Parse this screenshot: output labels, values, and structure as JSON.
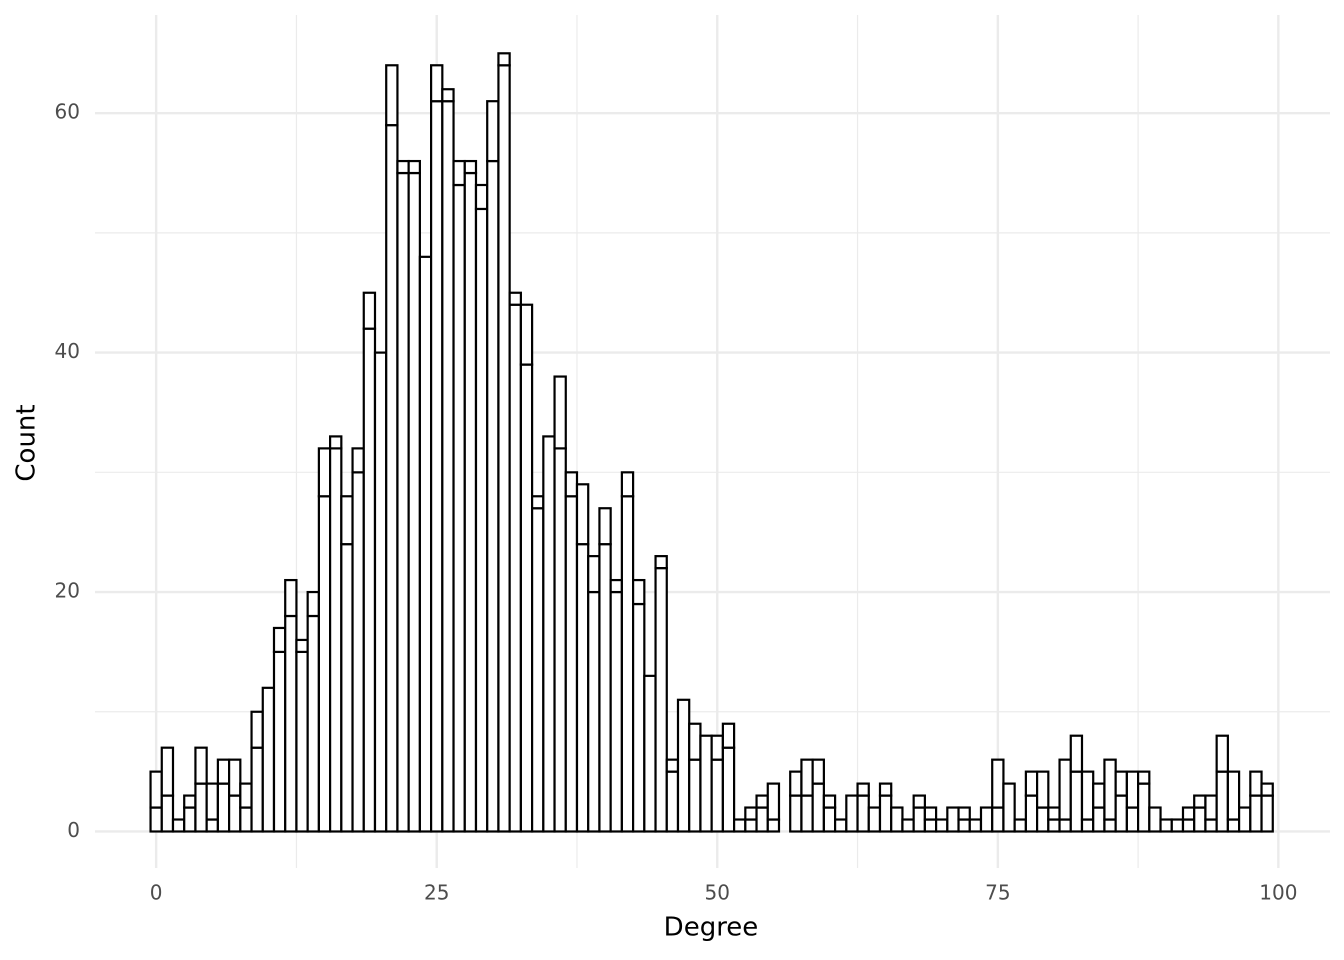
{
  "chart_data": {
    "type": "histogram",
    "x_label": "Degree",
    "y_label": "Count",
    "bins": [
      -0.5,
      0.5,
      1.5,
      2.5,
      3.5,
      4.5,
      5.5,
      6.5,
      7.5,
      8.5,
      9.5,
      10.5,
      11.5,
      12.5,
      13.5,
      14.5,
      15.5,
      16.5,
      17.5,
      18.5,
      19.5,
      20.5,
      21.5,
      22.5,
      23.5,
      24.5,
      25.5,
      26.5,
      27.5,
      28.5,
      29.5,
      30.5,
      31.5,
      32.5,
      33.5,
      34.5,
      35.5,
      36.5,
      37.5,
      38.5,
      39.5,
      40.5,
      41.5,
      42.5,
      43.5,
      44.5,
      45.5,
      46.5,
      47.5,
      48.5,
      49.5,
      50.5,
      51.5,
      52.5,
      53.5,
      54.5,
      55.5,
      56.5,
      57.5,
      58.5,
      59.5,
      60.5,
      61.5,
      62.5,
      63.5,
      64.5,
      65.5,
      66.5,
      67.5,
      68.5,
      69.5,
      70.5,
      71.5,
      72.5,
      73.5,
      74.5,
      75.5,
      76.5,
      77.5,
      78.5,
      79.5,
      80.5,
      81.5,
      82.5,
      83.5,
      84.5,
      85.5,
      86.5,
      87.5,
      88.5,
      89.5,
      90.5,
      91.5,
      92.5,
      93.5,
      94.5,
      95.5,
      96.5,
      97.5,
      98.5,
      99.5
    ],
    "series": [
      {
        "color": "#ffffff",
        "edgecolor": "#000000",
        "values": [
          2,
          3,
          1,
          2,
          4,
          1,
          4,
          3,
          2,
          7,
          12,
          15,
          18,
          15,
          18,
          28,
          32,
          24,
          30,
          42,
          40,
          59,
          55,
          55,
          48,
          61,
          61,
          54,
          55,
          52,
          56,
          64,
          44,
          39,
          27,
          33,
          32,
          28,
          24,
          20,
          24,
          20,
          28,
          19,
          13,
          22,
          5,
          11,
          6,
          8,
          6,
          7,
          1,
          1,
          2,
          1,
          0,
          3,
          3,
          4,
          2,
          1,
          3,
          3,
          2,
          3,
          2,
          1,
          2,
          1,
          1,
          2,
          1,
          1,
          2,
          2,
          4,
          1,
          3,
          2,
          1,
          1,
          5,
          1,
          2,
          1,
          3,
          2,
          4,
          2,
          1,
          1,
          1,
          2,
          1,
          5,
          1,
          2,
          3,
          3
        ]
      },
      {
        "color": "#ffffff",
        "edgecolor": "#000000",
        "values": [
          3,
          4,
          0,
          1,
          3,
          3,
          2,
          3,
          2,
          3,
          0,
          2,
          3,
          1,
          2,
          4,
          1,
          4,
          2,
          3,
          0,
          5,
          1,
          1,
          0,
          3,
          1,
          2,
          1,
          2,
          5,
          1,
          1,
          5,
          1,
          0,
          6,
          2,
          5,
          3,
          3,
          1,
          2,
          2,
          0,
          1,
          1,
          0,
          3,
          0,
          2,
          2,
          0,
          1,
          1,
          3,
          0,
          2,
          3,
          2,
          1,
          0,
          0,
          1,
          0,
          1,
          0,
          0,
          1,
          1,
          0,
          0,
          1,
          0,
          0,
          4,
          0,
          0,
          2,
          3,
          1,
          5,
          3,
          4,
          2,
          5,
          2,
          3,
          1,
          0,
          0,
          0,
          1,
          1,
          2,
          3,
          4,
          0,
          2,
          1
        ]
      }
    ],
    "stacked": true,
    "xlim": [
      -5.45,
      104.6
    ],
    "ylim": [
      -3.05,
      68.2
    ],
    "xticks": [
      0,
      25,
      50,
      75,
      100
    ],
    "yticks": [
      0,
      20,
      40,
      60
    ],
    "grid": true
  }
}
